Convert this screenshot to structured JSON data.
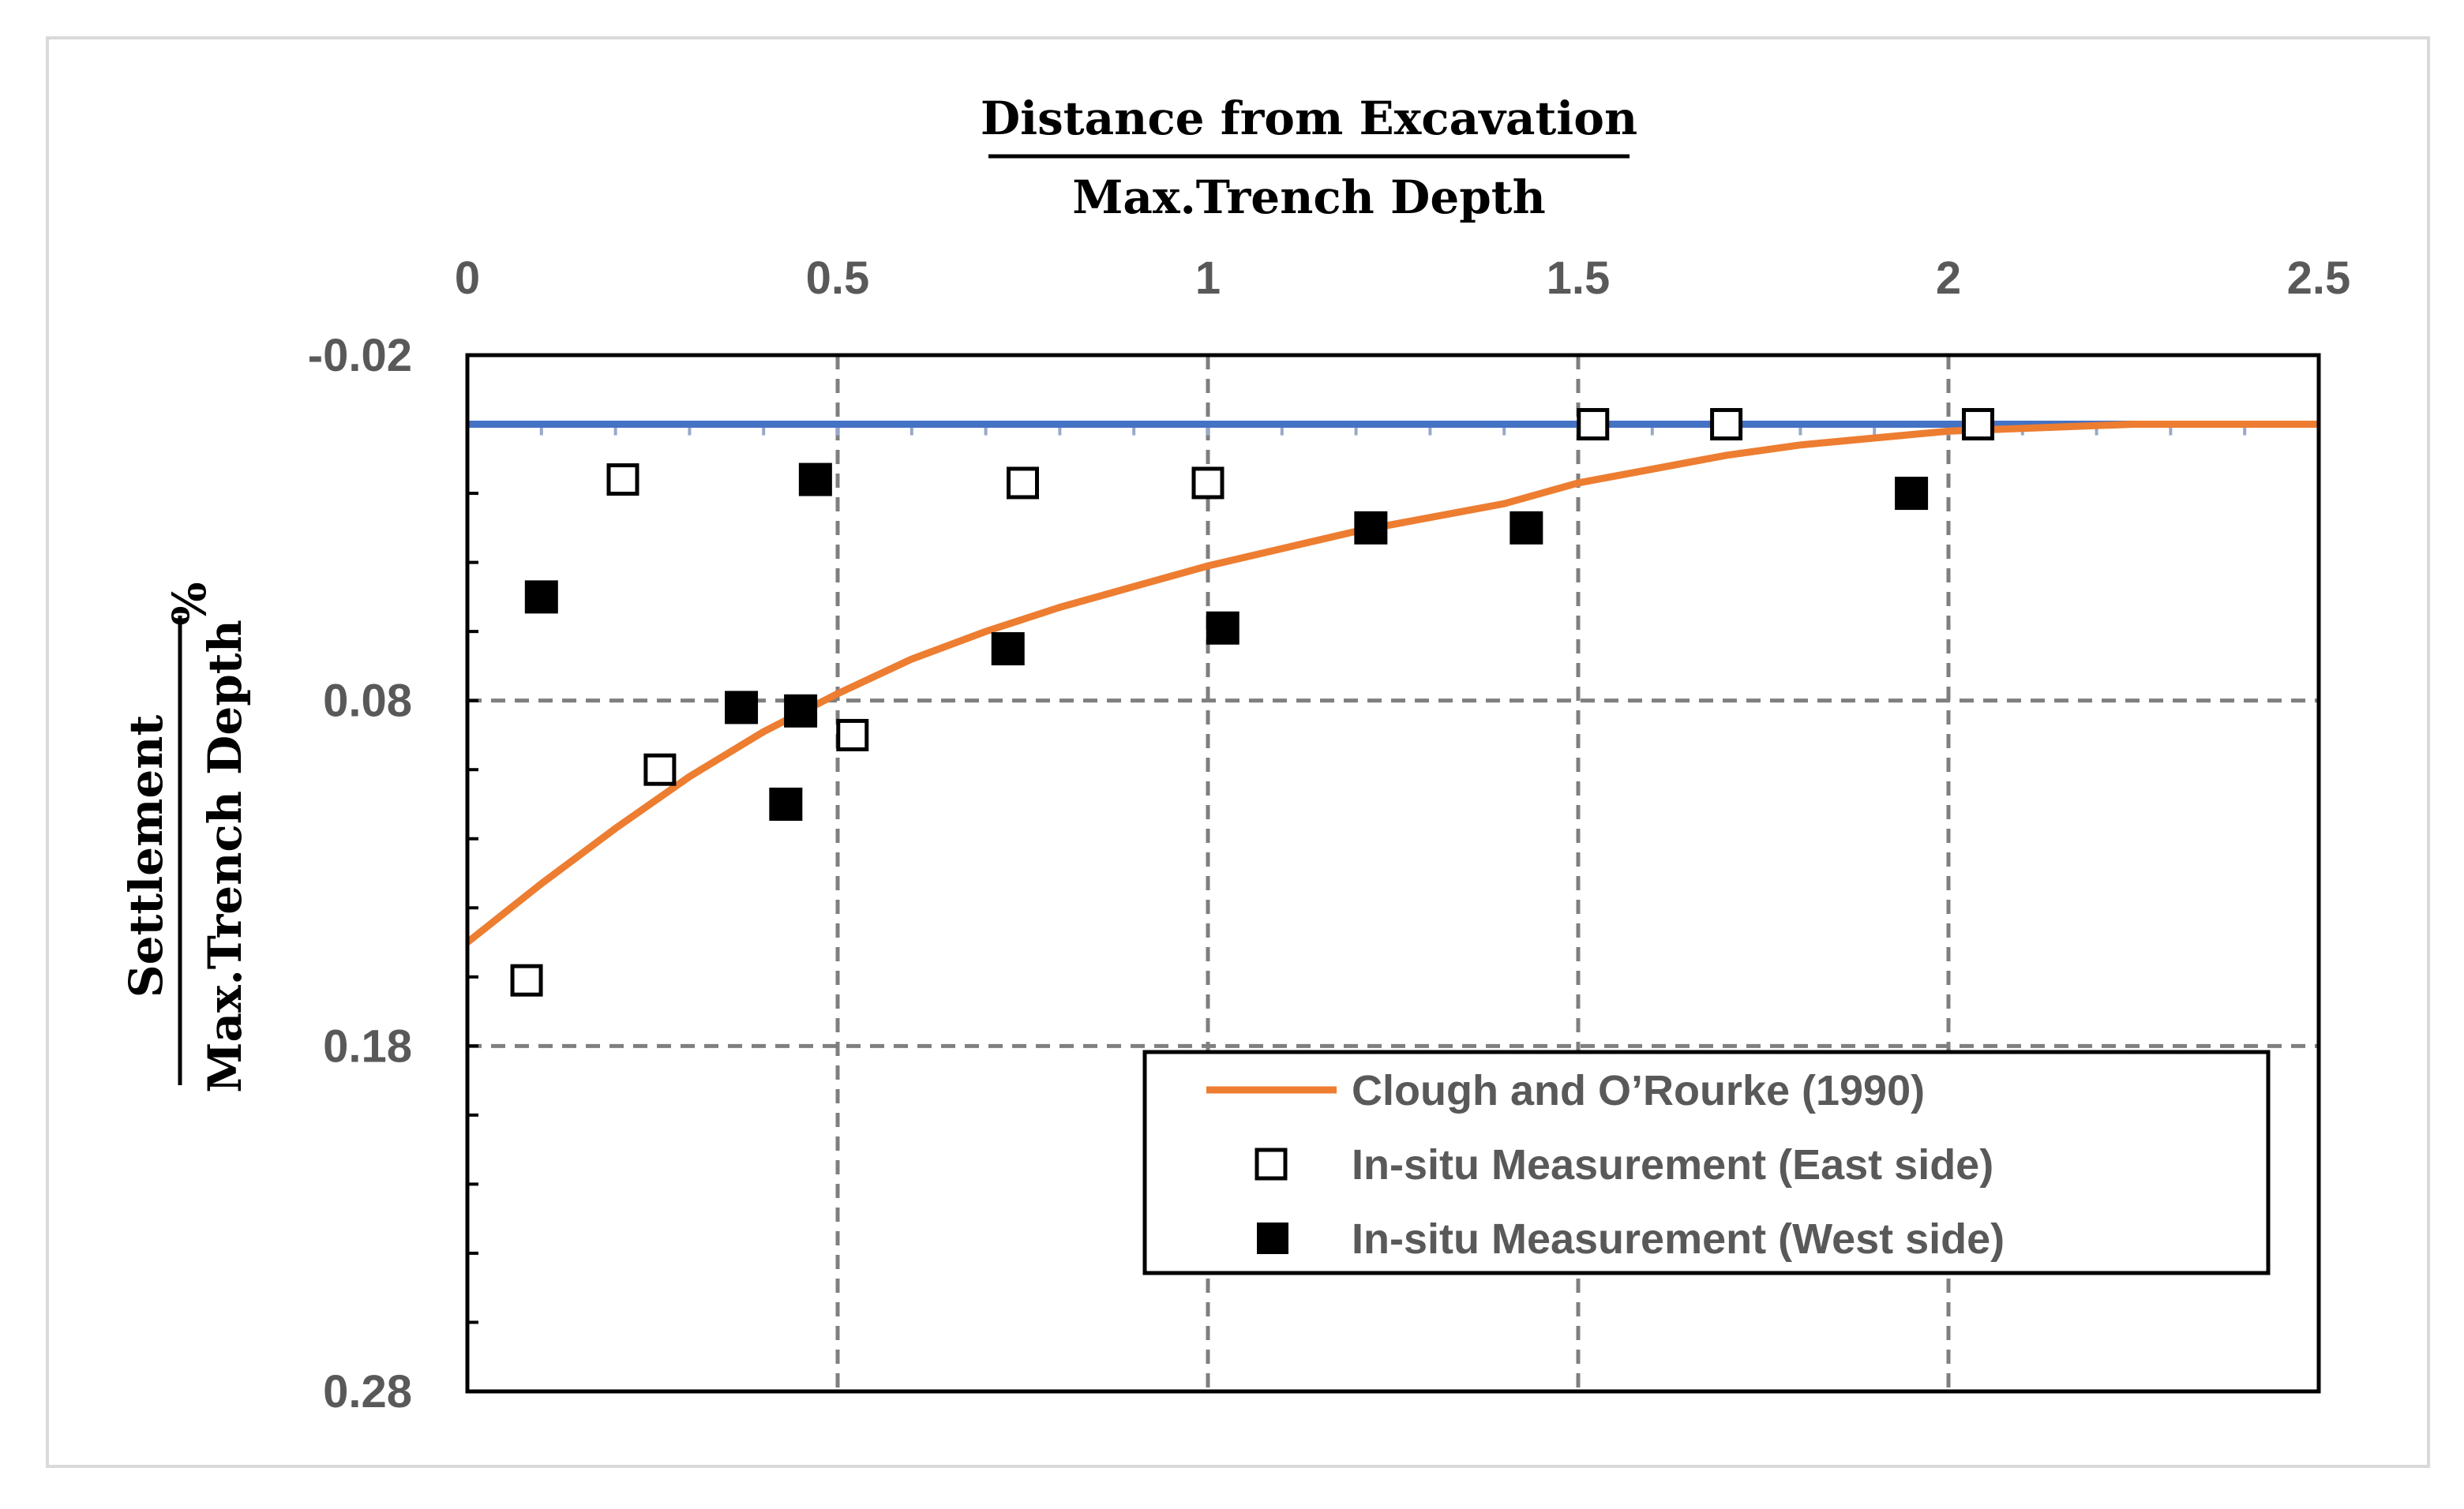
{
  "chart_data": {
    "type": "scatter",
    "x_axis": {
      "label_numerator": "Distance from Excavation",
      "label_denominator": "Max.Trench Depth",
      "position": "top",
      "range": [
        0,
        2.5
      ],
      "ticks": [
        0,
        0.5,
        1,
        1.5,
        2,
        2.5
      ],
      "tick_labels": [
        "0",
        "0.5",
        "1",
        "1.5",
        "2",
        "2.5"
      ]
    },
    "y_axis": {
      "label_numerator": "Settlement",
      "label_denominator": "Max.Trench Depth",
      "label_unit": "%",
      "inverted": true,
      "range": [
        -0.02,
        0.28
      ],
      "ticks": [
        -0.02,
        0.08,
        0.18,
        0.28
      ],
      "tick_labels": [
        "-0.02",
        "0.08",
        "0.18",
        "0.28"
      ]
    },
    "grid": "dashed",
    "reference_line": {
      "name": "zero settlement",
      "y": 0,
      "color": "#4472C4"
    },
    "series": [
      {
        "name": "Clough and O’Rourke (1990)",
        "kind": "line",
        "color": "#ED7D31",
        "x": [
          0,
          0.1,
          0.2,
          0.3,
          0.4,
          0.5,
          0.6,
          0.7,
          0.8,
          0.9,
          1.0,
          1.1,
          1.2,
          1.3,
          1.4,
          1.5,
          1.6,
          1.7,
          1.8,
          1.9,
          2.0,
          2.25,
          2.5
        ],
        "y": [
          0.15,
          0.133,
          0.117,
          0.102,
          0.089,
          0.078,
          0.068,
          0.06,
          0.053,
          0.047,
          0.041,
          0.036,
          0.031,
          0.027,
          0.023,
          0.017,
          0.013,
          0.009,
          0.006,
          0.004,
          0.002,
          0.0,
          0.0
        ]
      },
      {
        "name": "In-situ Measurement (East side)",
        "kind": "scatter",
        "marker": "open-square",
        "x": [
          0.08,
          0.21,
          0.26,
          0.52,
          0.75,
          1.0,
          1.52,
          1.7,
          2.04
        ],
        "y": [
          0.161,
          0.016,
          0.1,
          0.09,
          0.017,
          0.017,
          0.0,
          0.0,
          0.0
        ]
      },
      {
        "name": "In-situ Measurement (West side)",
        "kind": "scatter",
        "marker": "filled-square",
        "x": [
          0.1,
          0.37,
          0.43,
          0.45,
          0.47,
          0.73,
          1.02,
          1.22,
          1.43,
          1.95
        ],
        "y": [
          0.05,
          0.082,
          0.11,
          0.083,
          0.016,
          0.065,
          0.059,
          0.03,
          0.03,
          0.02
        ]
      }
    ],
    "legend": {
      "placement": "bottom-right",
      "entries": [
        "Clough and O’Rourke (1990)",
        "In-situ Measurement (East side)",
        "In-situ Measurement (West side)"
      ]
    }
  },
  "colors": {
    "reference_line": "#4472C4",
    "model_line": "#ED7D31",
    "grid": "#7F7F7F",
    "tick_text": "#595959",
    "marker": "#000000"
  }
}
